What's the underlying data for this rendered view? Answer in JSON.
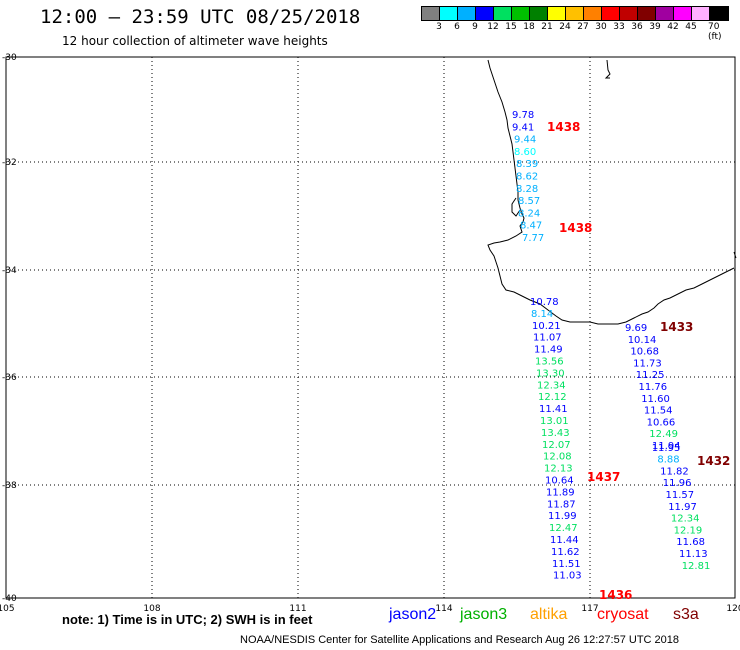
{
  "header": {
    "title": "12:00 – 23:59 UTC 08/25/2018",
    "subtitle": "12 hour collection of altimeter wave heights"
  },
  "colorbar": {
    "colors": [
      "#808080",
      "#00ffff",
      "#00b0ff",
      "#0000ff",
      "#00e060",
      "#00c000",
      "#008000",
      "#ffff00",
      "#ffc000",
      "#ff8000",
      "#ff0000",
      "#c00000",
      "#800000",
      "#a000a0",
      "#ff00ff",
      "#ffb0ff",
      "#000000"
    ],
    "labels": [
      "3",
      "6",
      "9",
      "12",
      "15",
      "18",
      "21",
      "24",
      "27",
      "30",
      "33",
      "36",
      "39",
      "42",
      "45",
      "70 (ft)"
    ]
  },
  "axes": {
    "lon_labels": [
      "105",
      "108",
      "111",
      "114",
      "117",
      "120"
    ],
    "lat_labels": [
      "-30",
      "-32",
      "-34",
      "-36",
      "-38",
      "-40"
    ]
  },
  "tracks": {
    "track1": {
      "values": [
        "9.78",
        "9.41",
        "9.44",
        "8.60",
        "8.39",
        "8.62",
        "8.28",
        "8.57",
        "8.24",
        "8.47",
        "7.77"
      ],
      "colors": [
        "#0000ff",
        "#0000ff",
        "#00b0ff",
        "#00ffff",
        "#00b0ff",
        "#00b0ff",
        "#00b0ff",
        "#00b0ff",
        "#00b0ff",
        "#00b0ff",
        "#00b0ff"
      ]
    },
    "track2": {
      "values": [
        "10.78",
        "8.14",
        "10.21",
        "11.07",
        "11.49",
        "13.56",
        "13.30",
        "12.34",
        "12.12",
        "11.41",
        "13.01",
        "13.43",
        "12.07",
        "12.08",
        "12.13",
        "10.64",
        "11.89",
        "11.87",
        "11.99",
        "12.47",
        "11.44",
        "11.62",
        "11.51",
        "11.03"
      ],
      "colors": [
        "#0000ff",
        "#00b0ff",
        "#0000ff",
        "#0000ff",
        "#0000ff",
        "#00e060",
        "#00e060",
        "#00e060",
        "#00e060",
        "#0000ff",
        "#00e060",
        "#00e060",
        "#00e060",
        "#00e060",
        "#00e060",
        "#0000ff",
        "#0000ff",
        "#0000ff",
        "#0000ff",
        "#00e060",
        "#0000ff",
        "#0000ff",
        "#0000ff",
        "#0000ff"
      ]
    },
    "track3": {
      "values": [
        "9.69",
        "10.14",
        "10.68",
        "11.73",
        "11.25",
        "11.76",
        "11.60",
        "11.54",
        "10.66",
        "12.49",
        "11.94",
        "11.95",
        "8.88",
        "11.82",
        "11.96",
        "11.57",
        "11.97",
        "12.34",
        "12.19",
        "11.68",
        "11.13",
        "12.81"
      ],
      "colors": [
        "#0000ff",
        "#0000ff",
        "#0000ff",
        "#0000ff",
        "#0000ff",
        "#0000ff",
        "#0000ff",
        "#0000ff",
        "#0000ff",
        "#00e060",
        "#0000ff",
        "#0000ff",
        "#00b0ff",
        "#0000ff",
        "#0000ff",
        "#0000ff",
        "#0000ff",
        "#00e060",
        "#00e060",
        "#0000ff",
        "#0000ff",
        "#00e060"
      ]
    }
  },
  "time_labels": [
    {
      "text": "1438",
      "color": "#ff0000"
    },
    {
      "text": "1438",
      "color": "#ff0000"
    },
    {
      "text": "1433",
      "color": "#800000"
    },
    {
      "text": "1432",
      "color": "#800000"
    },
    {
      "text": "1437",
      "color": "#ff0000"
    },
    {
      "text": "1436",
      "color": "#ff0000"
    }
  ],
  "footer": {
    "note": "note:  1) Time is in UTC;  2) SWH is in feet",
    "legend": [
      {
        "name": "jason2",
        "color": "#0000ff"
      },
      {
        "name": "jason3",
        "color": "#00b000"
      },
      {
        "name": "altika",
        "color": "#ffa000"
      },
      {
        "name": "cryosat",
        "color": "#ff0000"
      },
      {
        "name": "s3a",
        "color": "#800000"
      }
    ],
    "credit": "NOAA/NESDIS Center for Satellite Applications and Research   Aug 26 12:27:57 UTC 2018"
  }
}
